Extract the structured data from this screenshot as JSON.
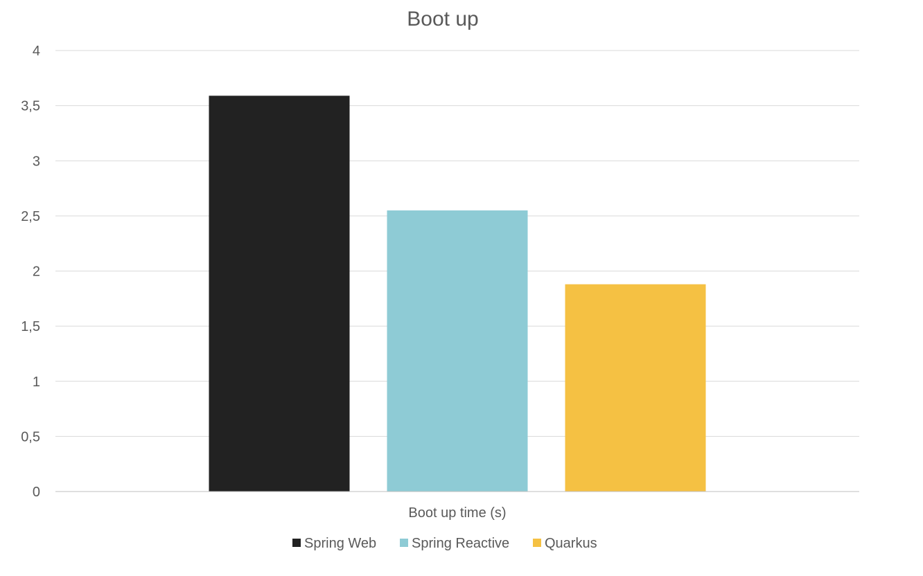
{
  "chart_data": {
    "type": "bar",
    "title": "Boot up",
    "categories": [
      "Boot up time (s)"
    ],
    "series": [
      {
        "name": "Spring Web",
        "values": [
          3.59
        ],
        "color": "#222222"
      },
      {
        "name": "Spring Reactive",
        "values": [
          2.55
        ],
        "color": "#8ECBD5"
      },
      {
        "name": "Quarkus",
        "values": [
          1.88
        ],
        "color": "#F5C143"
      }
    ],
    "y_ticks": [
      "0",
      "0,5",
      "1",
      "1,5",
      "2",
      "2,5",
      "3",
      "3,5",
      "4"
    ],
    "ylim": [
      0,
      4
    ],
    "ytick_step": 0.5,
    "xlabel": "",
    "ylabel": "",
    "grid": true,
    "legend_position": "bottom"
  }
}
